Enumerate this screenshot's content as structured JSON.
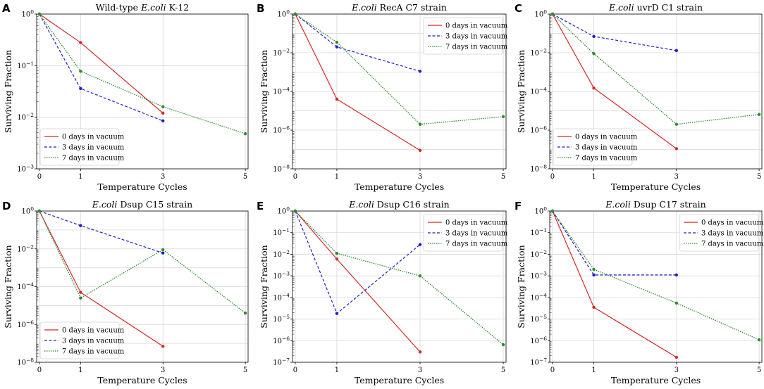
{
  "figure": {
    "x_label": "Temperature Cycles",
    "y_label": "Surviving Fraction",
    "legend_entries": [
      "0 days in vacuum",
      "3 days in vacuum",
      "7 days in vacuum"
    ]
  },
  "series_colors": {
    "0 days in vacuum": "#d62728",
    "3 days in vacuum": "#1f1fc8",
    "7 days in vacuum": "#2e8b2e"
  },
  "chart_data": [
    {
      "letter": "A",
      "title_italic": "E.coli",
      "title_prefix": "Wild-type ",
      "title_suffix": " K-12",
      "type": "line",
      "yscale": "log",
      "ylim_exp": [
        -3,
        0
      ],
      "y_ticks": [
        "10^0",
        "10^-1",
        "10^-2",
        "10^-3"
      ],
      "x_ticks": [
        "0",
        "1",
        "3",
        "5"
      ],
      "legend_position": "lower-left",
      "series": [
        {
          "name": "0 days in vacuum",
          "x": [
            0,
            1,
            3
          ],
          "y": [
            1.0,
            0.28,
            0.012
          ]
        },
        {
          "name": "3 days in vacuum",
          "x": [
            0,
            1,
            3
          ],
          "y": [
            1.0,
            0.036,
            0.0085
          ]
        },
        {
          "name": "7 days in vacuum",
          "x": [
            0,
            1,
            3,
            5
          ],
          "y": [
            1.0,
            0.078,
            0.016,
            0.0048
          ]
        }
      ]
    },
    {
      "letter": "B",
      "title_italic": "E.coli",
      "title_prefix": "",
      "title_suffix": " RecA C7 strain",
      "type": "line",
      "yscale": "log",
      "ylim_exp": [
        -8,
        0
      ],
      "y_ticks": [
        "10^0",
        "10^-2",
        "10^-4",
        "10^-6",
        "10^-8"
      ],
      "x_ticks": [
        "0",
        "1",
        "3",
        "5"
      ],
      "legend_position": "upper-right",
      "series": [
        {
          "name": "0 days in vacuum",
          "x": [
            0,
            1,
            3
          ],
          "y": [
            1.0,
            4e-05,
            9e-08
          ]
        },
        {
          "name": "3 days in vacuum",
          "x": [
            0,
            1,
            3
          ],
          "y": [
            1.0,
            0.02,
            0.0011
          ]
        },
        {
          "name": "7 days in vacuum",
          "x": [
            0,
            1,
            3,
            5
          ],
          "y": [
            1.0,
            0.035,
            2e-06,
            5e-06
          ]
        }
      ]
    },
    {
      "letter": "C",
      "title_italic": "E.coli",
      "title_prefix": "",
      "title_suffix": " uvrD C1 strain",
      "type": "line",
      "yscale": "log",
      "ylim_exp": [
        -8,
        0
      ],
      "y_ticks": [
        "10^0",
        "10^-2",
        "10^-4",
        "10^-6",
        "10^-8"
      ],
      "x_ticks": [
        "0",
        "1",
        "3",
        "5"
      ],
      "legend_position": "lower-left",
      "series": [
        {
          "name": "0 days in vacuum",
          "x": [
            0,
            1,
            3
          ],
          "y": [
            1.0,
            0.00015,
            1.1e-07
          ]
        },
        {
          "name": "3 days in vacuum",
          "x": [
            0,
            1,
            3
          ],
          "y": [
            1.0,
            0.07,
            0.013
          ]
        },
        {
          "name": "7 days in vacuum",
          "x": [
            0,
            1,
            3,
            5
          ],
          "y": [
            1.0,
            0.009,
            2e-06,
            6.5e-06
          ]
        }
      ]
    },
    {
      "letter": "D",
      "title_italic": "E.coli",
      "title_prefix": "",
      "title_suffix": " Dsup C15 strain",
      "type": "line",
      "yscale": "log",
      "ylim_exp": [
        -8,
        0
      ],
      "y_ticks": [
        "10^0",
        "10^-2",
        "10^-4",
        "10^-6",
        "10^-8"
      ],
      "x_ticks": [
        "0",
        "1",
        "3",
        "5"
      ],
      "legend_position": "lower-left",
      "series": [
        {
          "name": "0 days in vacuum",
          "x": [
            0,
            1,
            3
          ],
          "y": [
            1.0,
            5e-05,
            7e-08
          ]
        },
        {
          "name": "3 days in vacuum",
          "x": [
            0,
            1,
            3
          ],
          "y": [
            1.0,
            0.17,
            0.006
          ]
        },
        {
          "name": "7 days in vacuum",
          "x": [
            0,
            1,
            3,
            5
          ],
          "y": [
            1.0,
            2.5e-05,
            0.009,
            4e-06
          ]
        }
      ]
    },
    {
      "letter": "E",
      "title_italic": "E.coli",
      "title_prefix": "",
      "title_suffix": " Dsup C16 strain",
      "type": "line",
      "yscale": "log",
      "ylim_exp": [
        -7,
        0
      ],
      "y_ticks": [
        "10^0",
        "10^-1",
        "10^-2",
        "10^-3",
        "10^-4",
        "10^-5",
        "10^-6",
        "10^-7"
      ],
      "x_ticks": [
        "0",
        "1",
        "3",
        "5"
      ],
      "legend_position": "upper-right",
      "series": [
        {
          "name": "0 days in vacuum",
          "x": [
            0,
            1,
            3
          ],
          "y": [
            1.0,
            0.006,
            3e-07
          ]
        },
        {
          "name": "3 days in vacuum",
          "x": [
            0,
            1,
            3
          ],
          "y": [
            1.0,
            1.8e-05,
            0.028
          ]
        },
        {
          "name": "7 days in vacuum",
          "x": [
            0,
            1,
            3,
            5
          ],
          "y": [
            1.0,
            0.011,
            0.001,
            6.5e-07
          ]
        }
      ]
    },
    {
      "letter": "F",
      "title_italic": "E.coli",
      "title_prefix": "",
      "title_suffix": " Dsup C17 strain",
      "type": "line",
      "yscale": "log",
      "ylim_exp": [
        -7,
        0
      ],
      "y_ticks": [
        "10^0",
        "10^-1",
        "10^-2",
        "10^-3",
        "10^-4",
        "10^-5",
        "10^-6",
        "10^-7"
      ],
      "x_ticks": [
        "0",
        "1",
        "3",
        "5"
      ],
      "legend_position": "upper-right",
      "series": [
        {
          "name": "0 days in vacuum",
          "x": [
            0,
            1,
            3
          ],
          "y": [
            1.0,
            3.5e-05,
            1.7e-07
          ]
        },
        {
          "name": "3 days in vacuum",
          "x": [
            0,
            1,
            3
          ],
          "y": [
            1.0,
            0.0011,
            0.0011
          ]
        },
        {
          "name": "7 days in vacuum",
          "x": [
            0,
            1,
            3,
            5
          ],
          "y": [
            1.0,
            0.002,
            5.5e-05,
            1.1e-06
          ]
        }
      ]
    }
  ]
}
